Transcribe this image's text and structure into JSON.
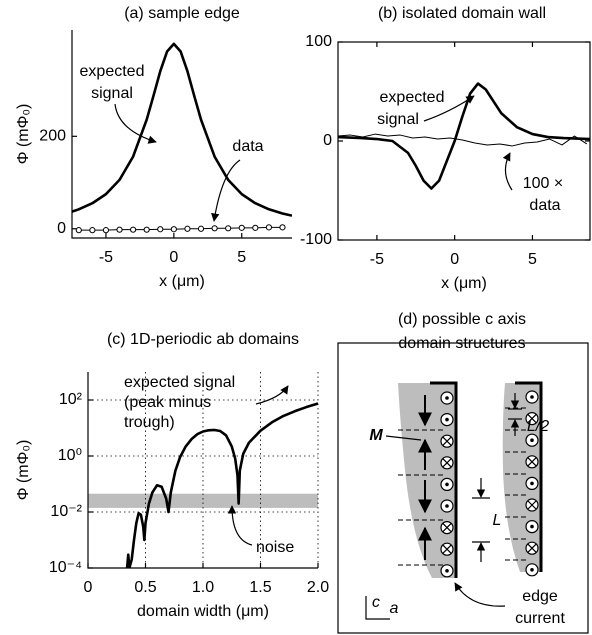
{
  "chart_data": [
    {
      "type": "line",
      "title": "(a) sample edge",
      "x_label": "x (μm)",
      "y_label": "Φ (mΦ₀)",
      "xlim": [
        -7.5,
        8.7
      ],
      "xticks": [
        -5,
        0,
        5
      ],
      "ylim": [
        -20,
        430
      ],
      "yticks": [
        0,
        200
      ],
      "box": false,
      "grid": false,
      "series": [
        {
          "color": "#000000",
          "line_width": 2.6,
          "x": [
            -7.5,
            -7,
            -6,
            -5,
            -4,
            -3,
            -2,
            -1.5,
            -1,
            -0.5,
            0,
            0.5,
            1,
            1.5,
            2,
            3,
            4,
            5,
            6,
            7,
            8,
            8.7
          ],
          "values": [
            37.1,
            42.1,
            55.2,
            74.9,
            105.8,
            156.1,
            236.1,
            287.6,
            340.8,
            383.4,
            400,
            383.4,
            340.8,
            287.6,
            236.1,
            156.1,
            105.8,
            74.9,
            55.2,
            42.1,
            33.0,
            28.3
          ]
        },
        {
          "color": "#000000",
          "line_width": 1,
          "marker": "circle",
          "x": [
            -7,
            -6,
            -5,
            -4,
            -3,
            -2,
            -1,
            0,
            1,
            2,
            3,
            4,
            5,
            6,
            7,
            8
          ],
          "values": [
            -3,
            -3,
            -3,
            -2,
            -2,
            -2,
            -1,
            -1,
            0,
            0,
            1,
            1,
            2,
            2,
            3,
            3
          ]
        }
      ],
      "annotations": [
        {
          "lines": [
            "expected",
            "signal"
          ]
        },
        {
          "lines": [
            "data"
          ]
        }
      ]
    },
    {
      "type": "line",
      "title": "(b) isolated domain wall",
      "x_label": "x (μm)",
      "xlim": [
        -7.5,
        8.7
      ],
      "xticks": [
        -5,
        0,
        5
      ],
      "ylim": [
        -100,
        100
      ],
      "yticks": [
        -100,
        0,
        100
      ],
      "box": true,
      "grid": false,
      "series": [
        {
          "color": "#000000",
          "line_width": 2.6,
          "x": [
            -7.5,
            -6,
            -5,
            -4,
            -3,
            -2.5,
            -2,
            -1.5,
            -1,
            -0.5,
            0,
            0.5,
            1,
            1.5,
            2,
            2.5,
            3,
            4,
            5,
            6,
            7,
            8.7
          ],
          "values": [
            4,
            3,
            2,
            0,
            -12,
            -25,
            -40,
            -48,
            -40,
            -20,
            0,
            25,
            48,
            58,
            52,
            40,
            28,
            14,
            7,
            4,
            3,
            2
          ]
        },
        {
          "color": "#000000",
          "line_width": 1,
          "x": [
            -7.5,
            -6.7,
            -5.9,
            -5.1,
            -4.3,
            -3.5,
            -2.7,
            -1.9,
            -1.1,
            -0.3,
            0.5,
            1.3,
            2.1,
            2.9,
            3.7,
            4.5,
            5.3,
            6.1,
            6.9,
            7.7,
            8.5
          ],
          "values": [
            5,
            6,
            4,
            7,
            5,
            6,
            3,
            4,
            2,
            3,
            1,
            -2,
            -4,
            -3,
            -5,
            -2,
            -1,
            2,
            -4,
            5,
            -3
          ]
        }
      ],
      "annotations": [
        {
          "lines": [
            "expected",
            "signal"
          ]
        },
        {
          "lines": [
            "100 ×",
            "data"
          ]
        }
      ]
    },
    {
      "type": "line",
      "title": "(c) 1D-periodic ab domains",
      "x_label": "domain width (μm)",
      "y_label": "Φ (mΦ₀)",
      "log_y": true,
      "box": false,
      "grid": true,
      "xlim": [
        0,
        2
      ],
      "xticks": [
        0,
        0.5,
        {
          "value": 1,
          "label": "1.0"
        },
        1.5,
        {
          "value": 2,
          "label": "2.0"
        }
      ],
      "ylim": [
        0.0001,
        1000
      ],
      "yticks": [
        {
          "value": 0.0001,
          "label": "10⁻⁴"
        },
        {
          "value": 0.01,
          "label": "10⁻²"
        },
        {
          "value": 1,
          "label": "10⁰"
        },
        {
          "value": 100,
          "label": "10²"
        }
      ],
      "noise_band": [
        0.014,
        0.045
      ],
      "noise_color": "#bdbdbd",
      "series": [
        {
          "color": "#000000",
          "line_width": 2.6,
          "x": [
            0.34,
            0.35,
            0.36,
            0.38,
            0.4,
            0.42,
            0.44,
            0.46,
            0.48,
            0.49,
            0.5,
            0.53,
            0.56,
            0.6,
            0.64,
            0.68,
            0.7,
            0.72,
            0.76,
            0.8,
            0.85,
            0.9,
            0.95,
            1.0,
            1.05,
            1.1,
            1.15,
            1.2,
            1.25,
            1.28,
            1.3,
            1.31,
            1.32,
            1.35,
            1.4,
            1.5,
            1.6,
            1.7,
            1.8,
            1.9,
            2.0
          ],
          "values": [
            0.0001,
            0.0003,
            0.0001,
            0.0002,
            0.001,
            0.004,
            0.009,
            0.008,
            0.003,
            0.001,
            0.004,
            0.02,
            0.05,
            0.09,
            0.08,
            0.03,
            0.01,
            0.05,
            0.3,
            0.9,
            2.2,
            4,
            6,
            7.5,
            8.3,
            8.5,
            7.8,
            5.5,
            2.2,
            0.8,
            0.2,
            0.02,
            0.3,
            1.2,
            3,
            8,
            16,
            27,
            40,
            56,
            75
          ]
        }
      ],
      "annotations": [
        {
          "lines": [
            "expected signal",
            "(peak minus",
            "trough)"
          ]
        },
        {
          "lines": [
            "noise"
          ]
        }
      ]
    }
  ],
  "diagram": {
    "title_lines": [
      "(d) possible c axis",
      "domain structures"
    ],
    "labels": {
      "M": "M",
      "L_half": "L/2",
      "L": "L",
      "c": "c",
      "a": "a",
      "edge_current": [
        "edge",
        "current"
      ]
    }
  }
}
